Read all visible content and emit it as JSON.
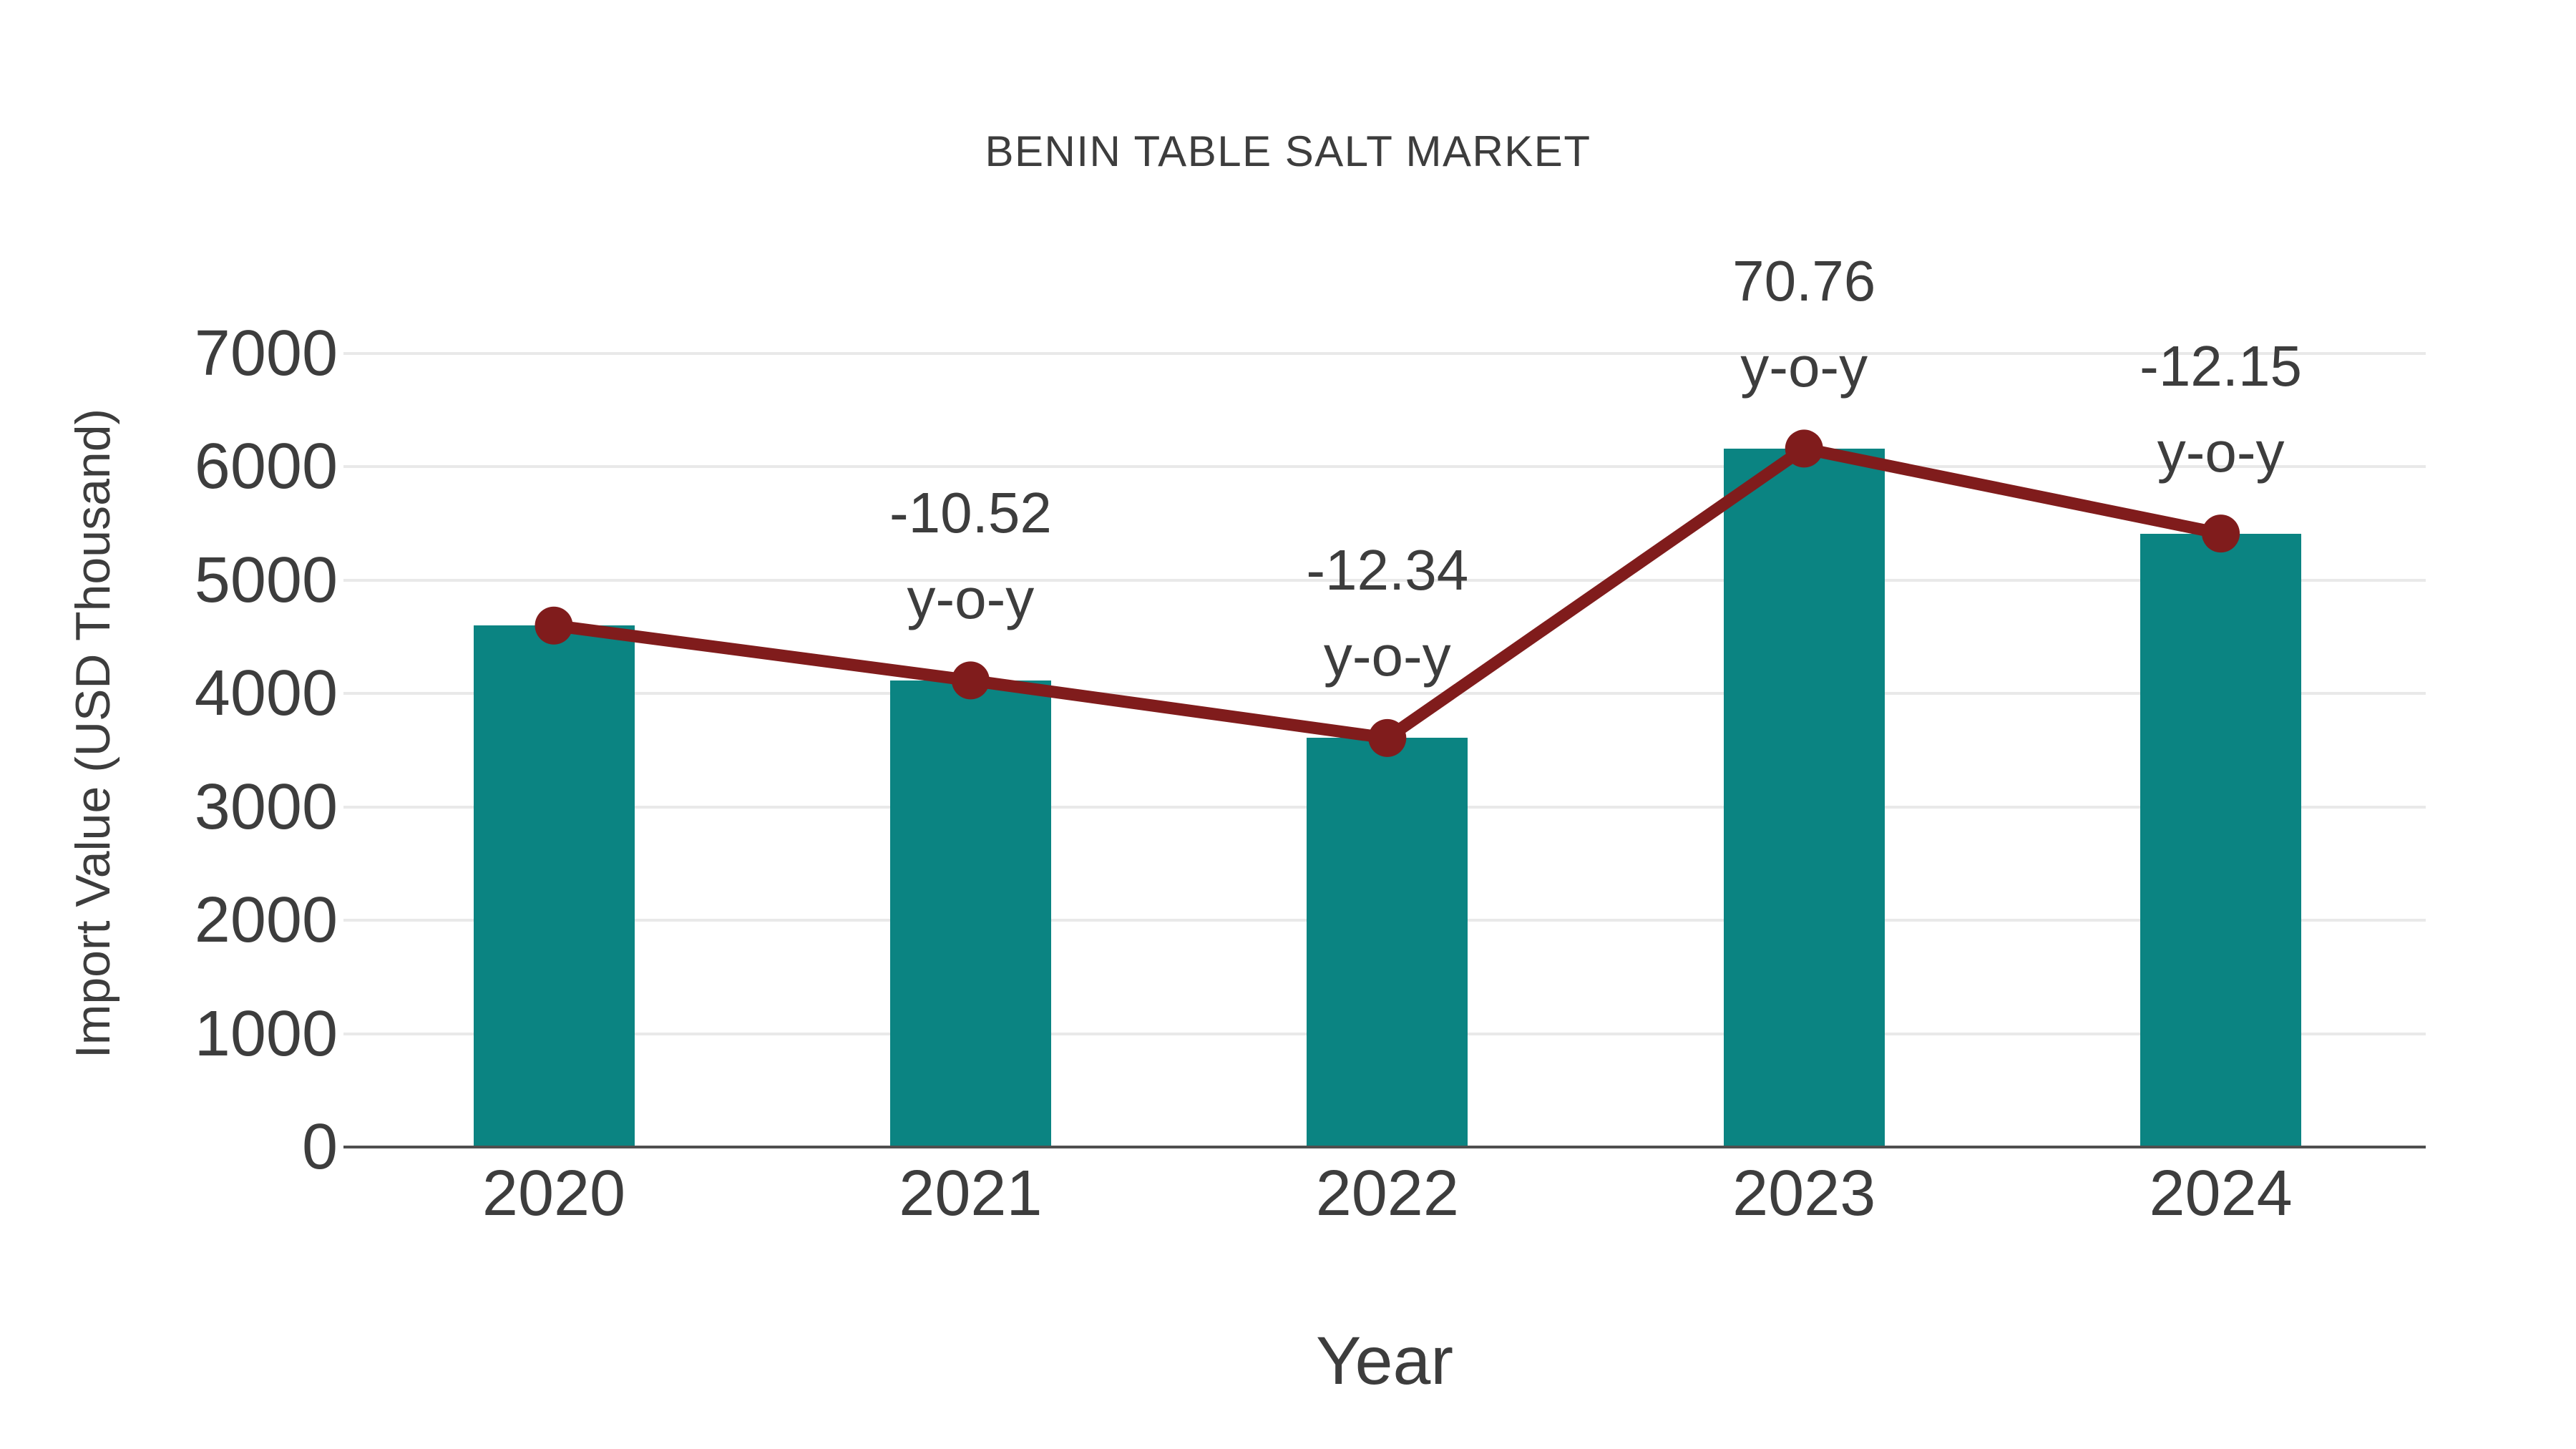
{
  "chart_data": {
    "type": "bar",
    "title": "BENIN TABLE SALT MARKET",
    "xlabel": "Year",
    "ylabel": "Import Value (USD Thousand)",
    "categories": [
      "2020",
      "2021",
      "2022",
      "2023",
      "2024"
    ],
    "series": [
      {
        "name": "Import Value bars",
        "type": "bar",
        "values": [
          4600,
          4116,
          3608,
          6161,
          5412
        ]
      },
      {
        "name": "Import Value trend line",
        "type": "line",
        "values": [
          4600,
          4116,
          3608,
          6161,
          5412
        ]
      }
    ],
    "annotations": [
      {
        "category": "2021",
        "value_line": "-10.52",
        "unit_line": "y-o-y"
      },
      {
        "category": "2022",
        "value_line": "-12.34",
        "unit_line": "y-o-y"
      },
      {
        "category": "2023",
        "value_line": "70.76",
        "unit_line": "y-o-y"
      },
      {
        "category": "2024",
        "value_line": "-12.15",
        "unit_line": "y-o-y"
      }
    ],
    "ylim": [
      0,
      7000
    ],
    "yticks": [
      0,
      1000,
      2000,
      3000,
      4000,
      5000,
      6000,
      7000
    ],
    "grid": true,
    "legend_position": "none",
    "colors": {
      "bar": "#0b8482",
      "line": "#801c1c",
      "marker": "#801c1c",
      "grid": "#e9e9e9",
      "axis": "#4f4f4f",
      "text": "#3d3d3d"
    }
  }
}
